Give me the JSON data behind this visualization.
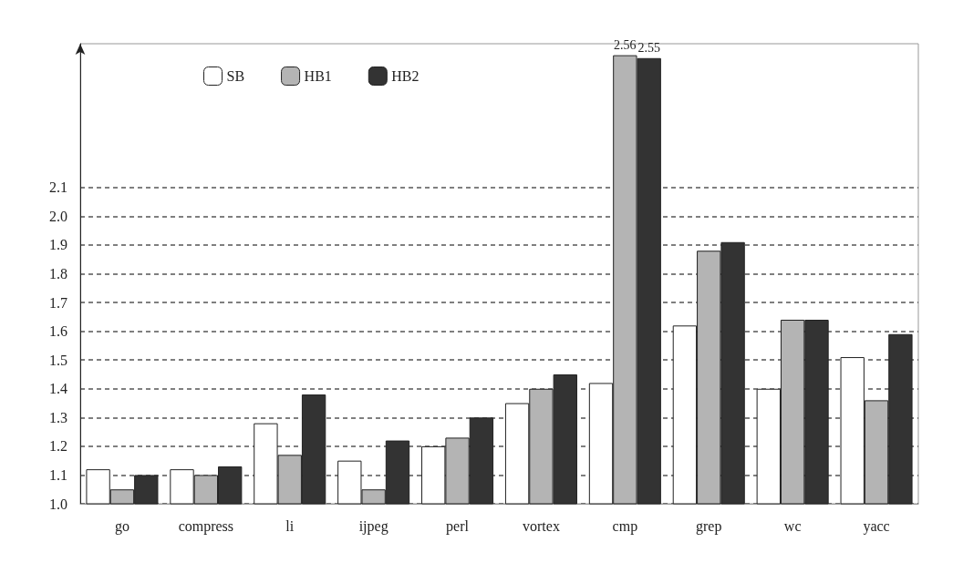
{
  "chart_data": {
    "type": "bar",
    "categories": [
      "go",
      "compress",
      "li",
      "ijpeg",
      "perl",
      "vortex",
      "cmp",
      "grep",
      "wc",
      "yacc"
    ],
    "series": [
      {
        "name": "SB",
        "color": "#ffffff",
        "values": [
          1.12,
          1.12,
          1.28,
          1.15,
          1.2,
          1.35,
          1.42,
          1.62,
          1.4,
          1.51
        ]
      },
      {
        "name": "HB1",
        "color": "#b4b4b4",
        "values": [
          1.05,
          1.1,
          1.17,
          1.05,
          1.23,
          1.4,
          2.56,
          1.88,
          1.64,
          1.36
        ],
        "value_labels": [
          null,
          null,
          null,
          null,
          null,
          null,
          "2.56",
          null,
          null,
          null
        ]
      },
      {
        "name": "HB2",
        "color": "#333333",
        "values": [
          1.1,
          1.13,
          1.38,
          1.22,
          1.3,
          1.45,
          2.55,
          1.91,
          1.64,
          1.59
        ],
        "value_labels": [
          null,
          null,
          null,
          null,
          null,
          null,
          "2.55",
          null,
          null,
          null
        ]
      }
    ],
    "ylim": [
      1.0,
      2.6
    ],
    "yticks": [
      {
        "value": 1,
        "label": "1.0"
      },
      1.1,
      1.2,
      1.3,
      1.4,
      1.5,
      1.6,
      1.7,
      1.8,
      1.9,
      {
        "value": 2,
        "label": "2.0"
      },
      2.1
    ],
    "grid": "y",
    "legend": "top left"
  }
}
